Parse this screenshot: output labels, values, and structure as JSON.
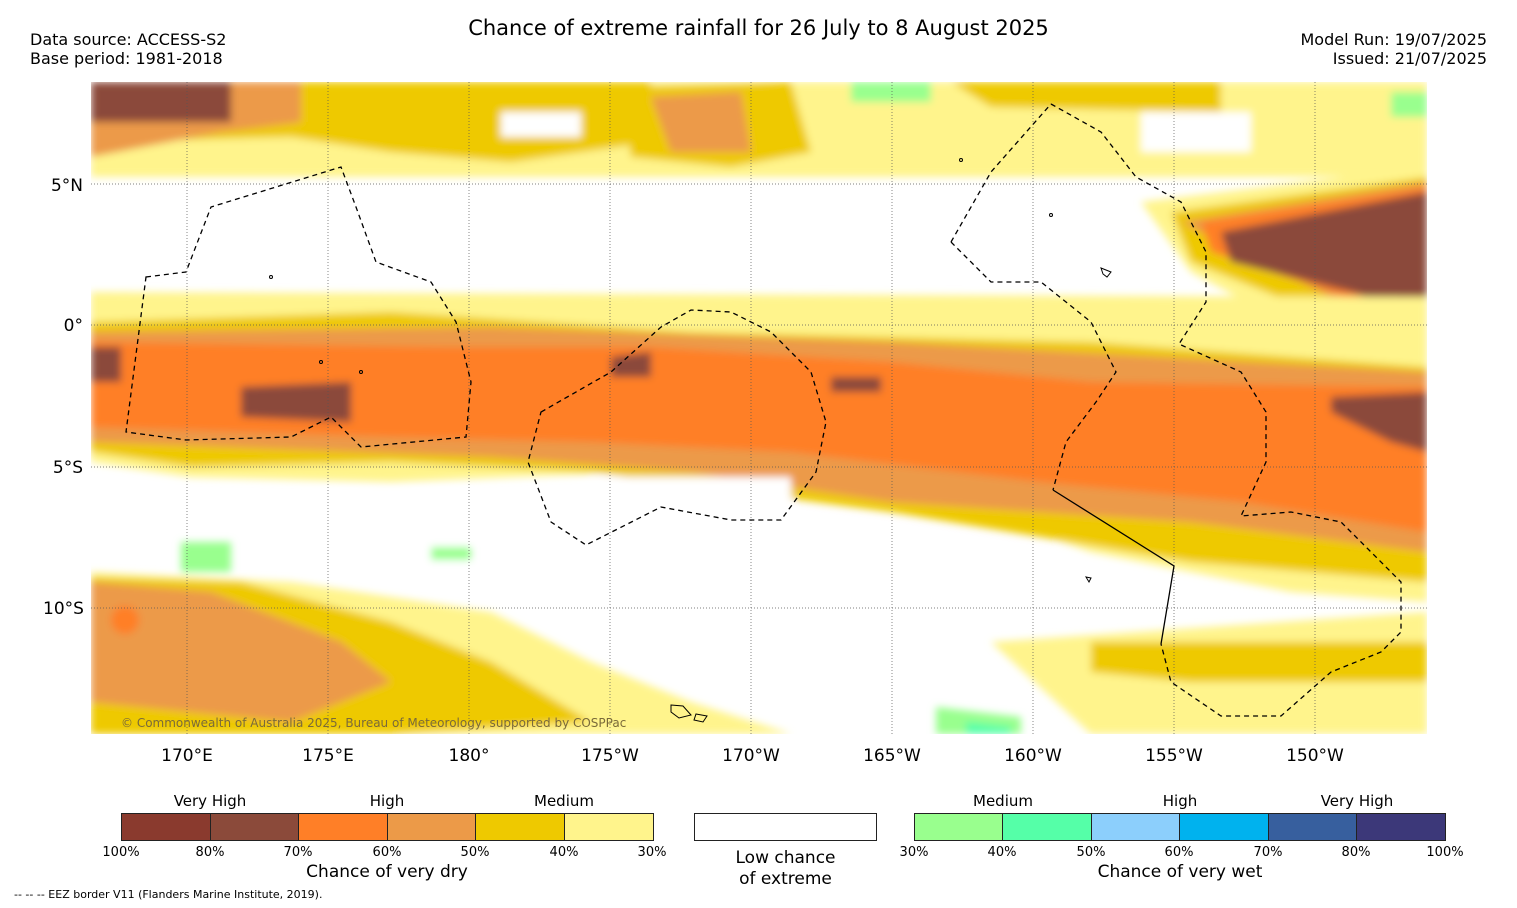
{
  "header": {
    "title": "Chance of extreme rainfall for 26 July to 8 August 2025",
    "data_source": "Data source: ACCESS-S2",
    "base_period": "Base period: 1981-2018",
    "model_run": "Model Run: 19/07/2025",
    "issued": "Issued: 21/07/2025"
  },
  "map": {
    "lat_labels": [
      "5°N",
      "0°",
      "5°S",
      "10°S"
    ],
    "lon_labels": [
      "170°E",
      "175°E",
      "180°",
      "175°W",
      "170°W",
      "165°W",
      "160°W",
      "155°W",
      "150°W"
    ],
    "credit": "© Commonwealth of Australia 2025, Bureau of Meteorology, supported by COSPPac",
    "colors": {
      "very_dry_100": "#8a3a2e",
      "very_dry_80": "#8b4a3a",
      "dry_70": "#ff7f27",
      "dry_60": "#ec9a48",
      "dry_50": "#eec900",
      "dry_40": "#fff48c",
      "wet_30": "#99ff8e",
      "wet_40": "#55ffa8",
      "wet_50": "#8ccffc",
      "wet_60": "#00b2ee",
      "wet_70": "#375f9e",
      "wet_80": "#3c3879"
    }
  },
  "legend": {
    "dry": {
      "category_labels": [
        "Very High",
        "High",
        "Medium"
      ],
      "ticks": [
        "100%",
        "80%",
        "70%",
        "60%",
        "50%",
        "40%",
        "30%"
      ],
      "caption": "Chance of very dry"
    },
    "low": {
      "caption_line1": "Low chance",
      "caption_line2": "of extreme"
    },
    "wet": {
      "category_labels": [
        "Medium",
        "High",
        "Very High"
      ],
      "ticks": [
        "30%",
        "40%",
        "50%",
        "60%",
        "70%",
        "80%",
        "100%"
      ],
      "caption": "Chance of very wet"
    }
  },
  "footnote": "--  --  -- EEZ border V11 (Flanders Marine Institute, 2019)."
}
